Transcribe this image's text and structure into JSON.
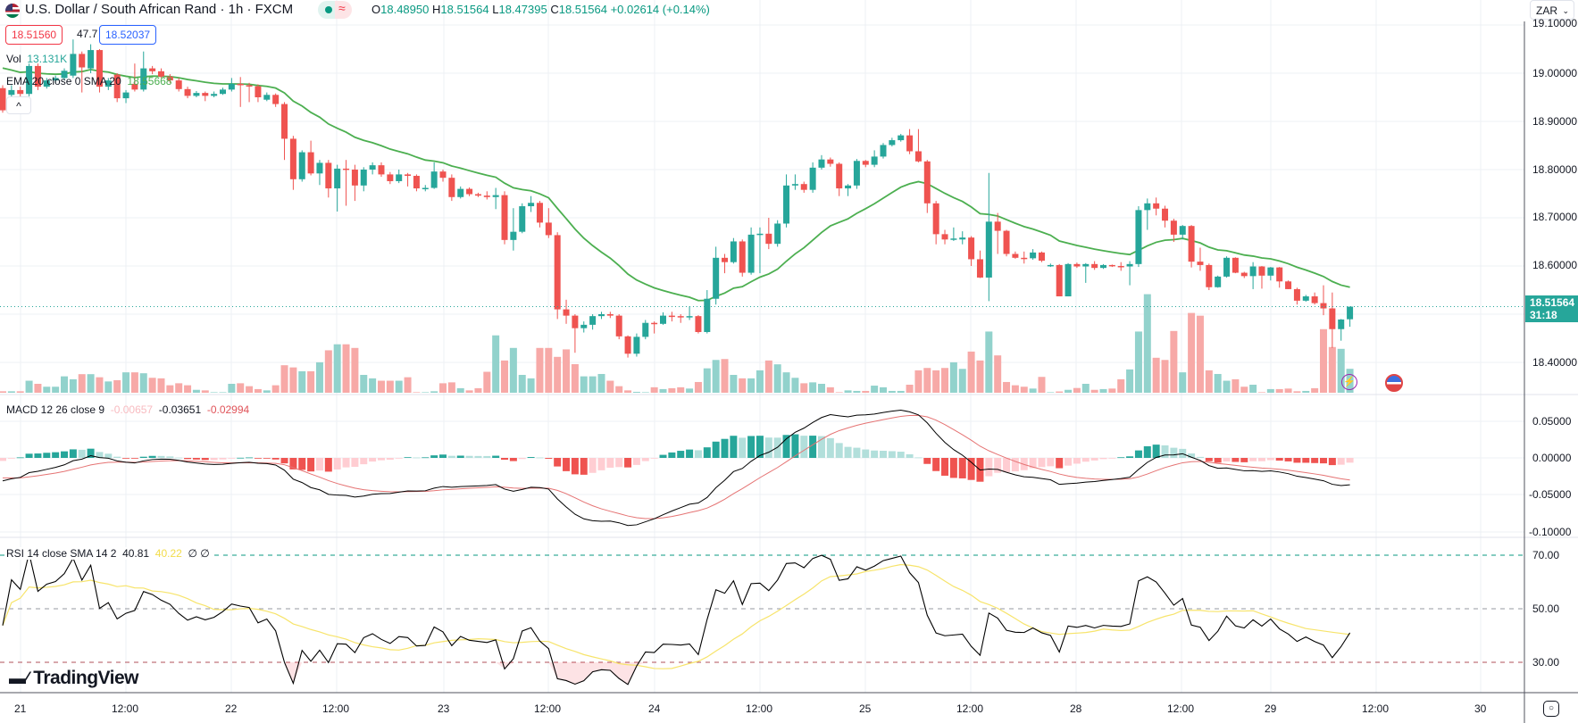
{
  "header": {
    "symbol_flag_icon": "usd-zar-flag",
    "title": "U.S. Dollar / South African Rand · 1h · FXCM",
    "status_dot_color": "#089981",
    "status_wave": "≈",
    "ohlc": {
      "o_label": "O",
      "o": "18.48950",
      "h_label": "H",
      "h": "18.51564",
      "l_label": "L",
      "l": "18.47395",
      "c_label": "C",
      "c": "18.51564",
      "change": "+0.02614 (+0.14%)"
    },
    "sell_price": "18.51560",
    "spread": "47.7",
    "buy_price": "18.52037",
    "currency": "ZAR",
    "collapse_label": "^"
  },
  "legends": {
    "vol_label": "Vol",
    "vol_value": "13.131K",
    "ema_label": "EMA 20 close 0 SMA 20",
    "ema_value": "18.55668",
    "macd_label": "MACD 12 26 close 9",
    "macd_hist": "-0.00657",
    "macd_line": "-0.03651",
    "macd_signal": "-0.02994",
    "rsi_label": "RSI 14 close SMA 14 2",
    "rsi_value": "40.81",
    "rsi_sma": "40.22",
    "rsi_extra1": "∅",
    "rsi_extra2": "∅"
  },
  "price_axis": {
    "labels": [
      "19.10000",
      "19.00000",
      "18.90000",
      "18.80000",
      "18.70000",
      "18.60000",
      "18.40000"
    ],
    "current_price": "18.51564",
    "countdown": "31:18"
  },
  "macd_axis": {
    "labels": [
      "0.05000",
      "0.00000",
      "-0.05000",
      "-0.10000"
    ]
  },
  "rsi_axis": {
    "labels": [
      "70.00",
      "50.00",
      "30.00"
    ]
  },
  "time_axis": {
    "labels": [
      "21",
      "12:00",
      "22",
      "12:00",
      "23",
      "12:00",
      "24",
      "12:00",
      "25",
      "12:00",
      "28",
      "12:00",
      "29",
      "12:00",
      "30"
    ]
  },
  "branding": {
    "logo_text": "TradingView"
  },
  "events": {
    "lightning_icon": "⚡",
    "us_flag_icon": "us-flag"
  },
  "colors": {
    "up": "#26a69a",
    "down": "#ef5350",
    "vol_up": "#92d2cc",
    "vol_down": "#f7a9a7",
    "ema": "#4caf50",
    "macd": "#000000",
    "signal": "#e57373",
    "rsi": "#000000",
    "rsi_sma": "#f7e46b"
  },
  "chart_data": {
    "type": "candlestick",
    "interval": "1h",
    "y_range": [
      18.35,
      19.1
    ],
    "grid": true,
    "ohlc": [
      [
        18.969,
        18.975,
        18.918,
        18.923
      ],
      [
        18.955,
        18.975,
        18.945,
        18.965
      ],
      [
        18.965,
        18.972,
        18.95,
        18.957
      ],
      [
        18.957,
        19.02,
        18.952,
        19.015
      ],
      [
        19.015,
        19.02,
        18.965,
        18.972
      ],
      [
        18.972,
        18.99,
        18.968,
        18.985
      ],
      [
        18.985,
        18.995,
        18.98,
        18.99
      ],
      [
        18.99,
        19.01,
        18.985,
        19.005
      ],
      [
        18.995,
        19.07,
        18.99,
        19.04
      ],
      [
        19.04,
        19.045,
        18.96,
        19.012
      ],
      [
        19.01,
        19.06,
        19.0,
        19.048
      ],
      [
        19.048,
        19.05,
        18.96,
        18.972
      ],
      [
        18.972,
        18.99,
        18.965,
        18.985
      ],
      [
        18.997,
        19.0,
        18.94,
        18.948
      ],
      [
        18.948,
        18.965,
        18.938,
        18.96
      ],
      [
        18.978,
        19.02,
        18.962,
        18.966
      ],
      [
        18.966,
        19.045,
        18.962,
        19.01
      ],
      [
        19.01,
        19.015,
        18.998,
        19.004
      ],
      [
        19.004,
        19.01,
        18.99,
        18.993
      ],
      [
        18.993,
        18.998,
        18.98,
        18.985
      ],
      [
        18.985,
        18.99,
        18.962,
        18.967
      ],
      [
        18.967,
        18.972,
        18.948,
        18.953
      ],
      [
        18.953,
        18.963,
        18.95,
        18.959
      ],
      [
        18.959,
        18.962,
        18.942,
        18.953
      ],
      [
        18.953,
        18.962,
        18.95,
        18.957
      ],
      [
        18.957,
        18.97,
        18.955,
        18.966
      ],
      [
        18.966,
        18.99,
        18.962,
        18.978
      ],
      [
        18.978,
        18.992,
        18.93,
        18.975
      ],
      [
        18.975,
        18.98,
        18.94,
        18.973
      ],
      [
        18.973,
        18.977,
        18.94,
        18.95
      ],
      [
        18.945,
        18.96,
        18.942,
        18.955
      ],
      [
        18.955,
        18.958,
        18.93,
        18.936
      ],
      [
        18.936,
        18.94,
        18.82,
        18.864
      ],
      [
        18.864,
        18.87,
        18.758,
        18.78
      ],
      [
        18.78,
        18.84,
        18.775,
        18.836
      ],
      [
        18.836,
        18.86,
        18.788,
        18.792
      ],
      [
        18.792,
        18.82,
        18.768,
        18.814
      ],
      [
        18.814,
        18.82,
        18.742,
        18.761
      ],
      [
        18.761,
        18.81,
        18.713,
        18.802
      ],
      [
        18.802,
        18.82,
        18.725,
        18.8
      ],
      [
        18.8,
        18.81,
        18.735,
        18.767
      ],
      [
        18.767,
        18.805,
        18.755,
        18.8
      ],
      [
        18.8,
        18.815,
        18.79,
        18.809
      ],
      [
        18.809,
        18.815,
        18.785,
        18.79
      ],
      [
        18.79,
        18.795,
        18.77,
        18.776
      ],
      [
        18.776,
        18.8,
        18.772,
        18.79
      ],
      [
        18.79,
        18.793,
        18.765,
        18.787
      ],
      [
        18.787,
        18.79,
        18.755,
        18.761
      ],
      [
        18.761,
        18.768,
        18.755,
        18.762
      ],
      [
        18.762,
        18.815,
        18.76,
        18.796
      ],
      [
        18.796,
        18.8,
        18.775,
        18.783
      ],
      [
        18.783,
        18.79,
        18.735,
        18.743
      ],
      [
        18.743,
        18.765,
        18.74,
        18.76
      ],
      [
        18.76,
        18.763,
        18.745,
        18.749
      ],
      [
        18.749,
        18.752,
        18.743,
        18.746
      ],
      [
        18.746,
        18.755,
        18.738,
        18.743
      ],
      [
        18.743,
        18.762,
        18.718,
        18.747
      ],
      [
        18.747,
        18.755,
        18.645,
        18.654
      ],
      [
        18.654,
        18.72,
        18.632,
        18.671
      ],
      [
        18.671,
        18.73,
        18.668,
        18.724
      ],
      [
        18.724,
        18.745,
        18.712,
        18.731
      ],
      [
        18.731,
        18.735,
        18.68,
        18.69
      ],
      [
        18.69,
        18.72,
        18.658,
        18.664
      ],
      [
        18.664,
        18.67,
        18.49,
        18.51
      ],
      [
        18.51,
        18.53,
        18.48,
        18.497
      ],
      [
        18.497,
        18.5,
        18.42,
        18.471
      ],
      [
        18.471,
        18.485,
        18.462,
        18.478
      ],
      [
        18.478,
        18.5,
        18.468,
        18.496
      ],
      [
        18.496,
        18.505,
        18.49,
        18.5
      ],
      [
        18.5,
        18.505,
        18.492,
        18.497
      ],
      [
        18.497,
        18.5,
        18.448,
        18.454
      ],
      [
        18.454,
        18.456,
        18.41,
        18.418
      ],
      [
        18.418,
        18.46,
        18.412,
        18.453
      ],
      [
        18.453,
        18.488,
        18.448,
        18.482
      ],
      [
        18.482,
        18.485,
        18.46,
        18.48
      ],
      [
        18.48,
        18.504,
        18.478,
        18.497
      ],
      [
        18.497,
        18.505,
        18.485,
        18.496
      ],
      [
        18.496,
        18.5,
        18.482,
        18.494
      ],
      [
        18.494,
        18.516,
        18.488,
        18.496
      ],
      [
        18.496,
        18.498,
        18.46,
        18.463
      ],
      [
        18.463,
        18.55,
        18.46,
        18.532
      ],
      [
        18.532,
        18.64,
        18.52,
        18.617
      ],
      [
        18.617,
        18.625,
        18.585,
        18.608
      ],
      [
        18.608,
        18.658,
        18.605,
        18.651
      ],
      [
        18.651,
        18.655,
        18.578,
        18.586
      ],
      [
        18.586,
        18.68,
        18.582,
        18.665
      ],
      [
        18.665,
        18.68,
        18.585,
        18.667
      ],
      [
        18.667,
        18.7,
        18.635,
        18.646
      ],
      [
        18.646,
        18.695,
        18.64,
        18.688
      ],
      [
        18.688,
        18.79,
        18.68,
        18.767
      ],
      [
        18.767,
        18.79,
        18.758,
        18.77
      ],
      [
        18.77,
        18.775,
        18.752,
        18.758
      ],
      [
        18.758,
        18.815,
        18.752,
        18.804
      ],
      [
        18.804,
        18.83,
        18.8,
        18.821
      ],
      [
        18.821,
        18.825,
        18.806,
        18.812
      ],
      [
        18.812,
        18.815,
        18.745,
        18.761
      ],
      [
        18.761,
        18.77,
        18.745,
        18.767
      ],
      [
        18.767,
        18.822,
        18.76,
        18.818
      ],
      [
        18.818,
        18.82,
        18.805,
        18.81
      ],
      [
        18.81,
        18.84,
        18.805,
        18.827
      ],
      [
        18.827,
        18.855,
        18.823,
        18.851
      ],
      [
        18.851,
        18.866,
        18.848,
        18.861
      ],
      [
        18.861,
        18.874,
        18.858,
        18.871
      ],
      [
        18.871,
        18.884,
        18.832,
        18.838
      ],
      [
        18.838,
        18.884,
        18.815,
        18.817
      ],
      [
        18.817,
        18.82,
        18.71,
        18.73
      ],
      [
        18.73,
        18.735,
        18.645,
        18.666
      ],
      [
        18.666,
        18.675,
        18.645,
        18.655
      ],
      [
        18.655,
        18.68,
        18.652,
        18.657
      ],
      [
        18.655,
        18.672,
        18.645,
        18.659
      ],
      [
        18.659,
        18.662,
        18.6,
        18.614
      ],
      [
        18.614,
        18.632,
        18.575,
        18.576
      ],
      [
        18.576,
        18.793,
        18.527,
        18.692
      ],
      [
        18.692,
        18.71,
        18.625,
        18.673
      ],
      [
        18.673,
        18.675,
        18.62,
        18.625
      ],
      [
        18.625,
        18.63,
        18.615,
        18.617
      ],
      [
        18.617,
        18.63,
        18.605,
        18.616
      ],
      [
        18.616,
        18.635,
        18.613,
        18.628
      ],
      [
        18.628,
        18.63,
        18.608,
        18.611
      ],
      [
        18.6,
        18.605,
        18.598,
        18.602
      ],
      [
        18.602,
        18.604,
        18.537,
        18.537
      ],
      [
        18.537,
        18.606,
        18.537,
        18.604
      ],
      [
        18.604,
        18.607,
        18.596,
        18.599
      ],
      [
        18.599,
        18.606,
        18.565,
        18.604
      ],
      [
        18.604,
        18.61,
        18.592,
        18.596
      ],
      [
        18.596,
        18.604,
        18.594,
        18.602
      ],
      [
        18.602,
        18.603,
        18.598,
        18.6
      ],
      [
        18.6,
        18.608,
        18.59,
        18.599
      ],
      [
        18.599,
        18.61,
        18.56,
        18.604
      ],
      [
        18.604,
        18.724,
        18.598,
        18.716
      ],
      [
        18.716,
        18.74,
        18.675,
        18.73
      ],
      [
        18.73,
        18.742,
        18.705,
        18.719
      ],
      [
        18.719,
        18.725,
        18.68,
        18.694
      ],
      [
        18.694,
        18.698,
        18.65,
        18.665
      ],
      [
        18.665,
        18.685,
        18.655,
        18.683
      ],
      [
        18.683,
        18.685,
        18.597,
        18.609
      ],
      [
        18.609,
        18.638,
        18.59,
        18.602
      ],
      [
        18.602,
        18.605,
        18.55,
        18.556
      ],
      [
        18.556,
        18.58,
        18.555,
        18.578
      ],
      [
        18.578,
        18.62,
        18.576,
        18.617
      ],
      [
        18.617,
        18.618,
        18.585,
        18.586
      ],
      [
        18.586,
        18.588,
        18.575,
        18.579
      ],
      [
        18.579,
        18.608,
        18.552,
        18.599
      ],
      [
        18.599,
        18.6,
        18.553,
        18.58
      ],
      [
        18.58,
        18.598,
        18.57,
        18.597
      ],
      [
        18.597,
        18.598,
        18.555,
        18.568
      ],
      [
        18.568,
        18.57,
        18.552,
        18.552
      ],
      [
        18.552,
        18.555,
        18.52,
        18.528
      ],
      [
        18.528,
        18.54,
        18.526,
        18.537
      ],
      [
        18.537,
        18.545,
        18.52,
        18.523
      ],
      [
        18.523,
        18.56,
        18.498,
        18.512
      ],
      [
        18.512,
        18.545,
        18.43,
        18.469
      ],
      [
        18.469,
        18.49,
        18.445,
        18.489
      ],
      [
        18.4895,
        18.51564,
        18.47395,
        18.51564
      ]
    ],
    "volume_k": [
      0.8,
      0.8,
      0.8,
      6.6,
      4.9,
      3.3,
      3.3,
      9.0,
      7.4,
      10.2,
      10.2,
      8.5,
      6.2,
      6.9,
      11.2,
      11.2,
      10.7,
      8.2,
      7.9,
      4.1,
      5.2,
      4.1,
      1.6,
      1.3,
      0.3,
      0.3,
      4.9,
      5.2,
      3.6,
      2.0,
      1.3,
      4.1,
      15.1,
      13.9,
      11.8,
      11.8,
      16.7,
      23.3,
      26.6,
      26.6,
      24.6,
      9.8,
      7.9,
      6.6,
      6.6,
      6.6,
      8.5,
      0.3,
      0.3,
      0.8,
      5.2,
      5.7,
      2.5,
      1.3,
      2.5,
      11.5,
      31.5,
      17.7,
      24.6,
      9.8,
      7.9,
      24.6,
      24.6,
      19.7,
      23.8,
      15.7,
      9.0,
      9.0,
      10.3,
      6.6,
      3.6,
      1.3,
      0.5,
      0.3,
      3.0,
      2.0,
      2.5,
      3.0,
      2.3,
      5.9,
      13.4,
      18.0,
      18.5,
      9.8,
      7.9,
      7.9,
      12.3,
      17.7,
      15.6,
      11.2,
      8.2,
      5.2,
      5.7,
      4.9,
      3.0,
      0.3,
      1.3,
      1.0,
      1.0,
      3.9,
      3.0,
      1.0,
      1.0,
      4.4,
      12.3,
      13.6,
      12.3,
      13.6,
      16.7,
      13.1,
      22.6,
      17.7,
      33.6,
      20.5,
      5.9,
      4.1,
      3.3,
      2.3,
      8.7,
      0.3,
      0.7,
      1.6,
      2.6,
      4.9,
      1.6,
      2.0,
      2.3,
      7.4,
      12.8,
      33.6,
      54.1,
      19.2,
      18.0,
      33.9,
      11.2,
      43.8,
      42.3,
      12.3,
      10.3,
      6.6,
      7.4,
      3.3,
      4.4,
      0.3,
      2.0,
      2.0,
      2.3,
      0.8,
      1.0,
      2.5,
      34.9,
      25.1,
      24.1,
      13.131
    ]
  }
}
